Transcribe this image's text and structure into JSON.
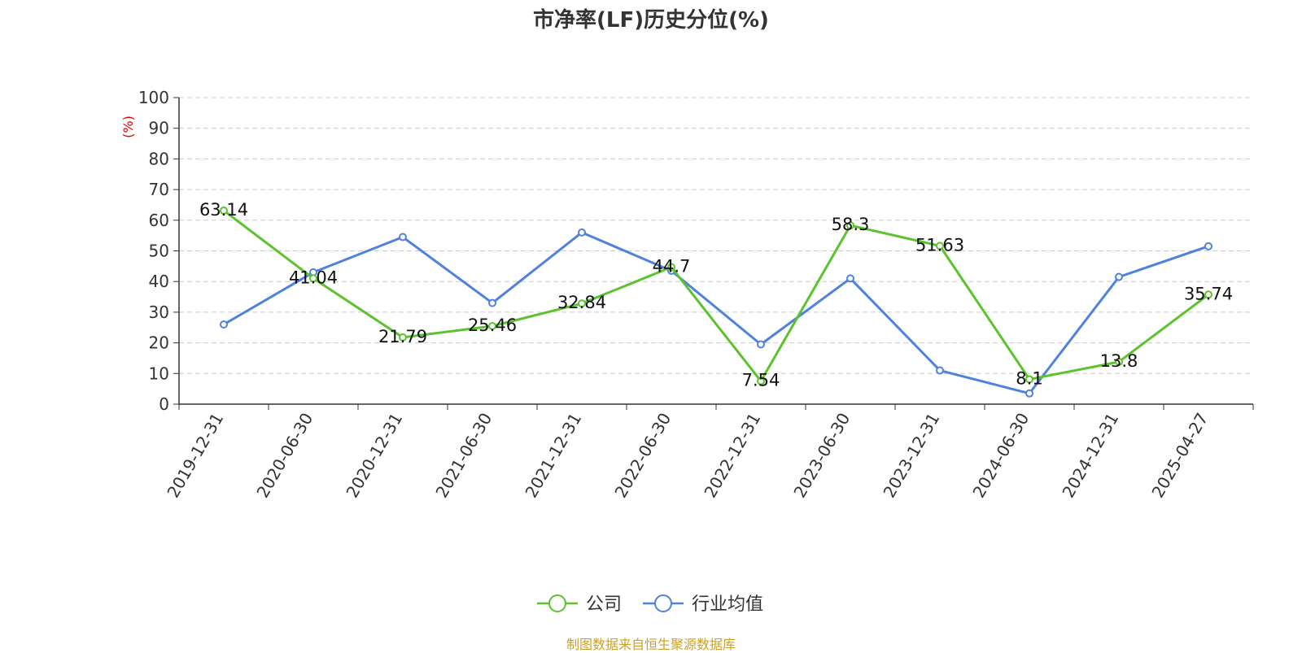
{
  "chart_data": {
    "type": "line",
    "title": "市净率(LF)历史分位(%)",
    "ylabel": "(%)",
    "ylim": [
      0,
      100
    ],
    "yticks": [
      0,
      10,
      20,
      30,
      40,
      50,
      60,
      70,
      80,
      90,
      100
    ],
    "grid": true,
    "legend_position": "bottom",
    "categories": [
      "2019-12-31",
      "2020-06-30",
      "2020-12-31",
      "2021-06-30",
      "2021-12-31",
      "2022-06-30",
      "2022-12-31",
      "2023-06-30",
      "2023-12-31",
      "2024-06-30",
      "2024-12-31",
      "2025-04-27"
    ],
    "series": [
      {
        "name": "公司",
        "color": "#5cc22e",
        "values": [
          63.14,
          41.04,
          21.79,
          25.46,
          32.84,
          44.7,
          7.54,
          58.3,
          51.63,
          8.1,
          13.8,
          35.74
        ],
        "data_labels": [
          "63.14",
          "41.04",
          "21.79",
          "25.46",
          "32.84",
          "44.7",
          "7.54",
          "58.3",
          "51.63",
          "8.1",
          "13.8",
          "35.74"
        ]
      },
      {
        "name": "行业均值",
        "color": "#4f82dc",
        "values": [
          26,
          43,
          54.5,
          33,
          56,
          43.5,
          19.5,
          41,
          11,
          3.5,
          41.5,
          51.5
        ]
      }
    ]
  },
  "source_text": "制图数据来自恒生聚源数据库",
  "ylabel_color": "#e00000",
  "source_color": "#c9a227"
}
